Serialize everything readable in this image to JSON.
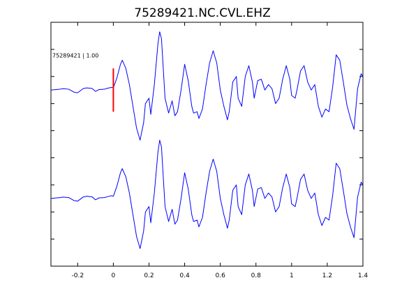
{
  "chart_data": {
    "type": "line",
    "title": "75289421.NC.CVL.EHZ",
    "xlabel": "",
    "ylabel": "",
    "xlim": [
      -0.35,
      1.4
    ],
    "ylim": [
      -7.5,
      1.5
    ],
    "x_ticks": [
      -0.2,
      0,
      0.2,
      0.4,
      0.6,
      0.8,
      1,
      1.2,
      1.4
    ],
    "x_tick_labels": [
      "-0.2",
      "0",
      "0.2",
      "0.4",
      "0.6",
      "0.8",
      "1",
      "1.2",
      "1.4"
    ],
    "y_ticks": [
      -6.5,
      -5.5,
      -4.5,
      -3.5,
      -2.5,
      -1.5,
      -0.5,
      0.5
    ],
    "grid": false,
    "series_color": "#0000ff",
    "traces": [
      {
        "label": "75289421 | 1.00",
        "offset": -1,
        "points": [
          [
            -0.35,
            0.0
          ],
          [
            -0.3,
            0.03
          ],
          [
            -0.28,
            0.05
          ],
          [
            -0.25,
            0.03
          ],
          [
            -0.22,
            -0.08
          ],
          [
            -0.2,
            -0.1
          ],
          [
            -0.17,
            0.05
          ],
          [
            -0.15,
            0.08
          ],
          [
            -0.12,
            0.06
          ],
          [
            -0.1,
            -0.05
          ],
          [
            -0.08,
            0.02
          ],
          [
            -0.05,
            0.03
          ],
          [
            -0.03,
            0.07
          ],
          [
            -0.01,
            0.1
          ],
          [
            0.0,
            0.08
          ],
          [
            0.02,
            0.45
          ],
          [
            0.04,
            0.95
          ],
          [
            0.05,
            1.1
          ],
          [
            0.07,
            0.8
          ],
          [
            0.09,
            0.2
          ],
          [
            0.11,
            -0.6
          ],
          [
            0.13,
            -1.4
          ],
          [
            0.15,
            -1.85
          ],
          [
            0.17,
            -1.2
          ],
          [
            0.18,
            -0.5
          ],
          [
            0.2,
            -0.3
          ],
          [
            0.21,
            -0.9
          ],
          [
            0.23,
            0.2
          ],
          [
            0.25,
            1.7
          ],
          [
            0.26,
            2.15
          ],
          [
            0.27,
            1.9
          ],
          [
            0.29,
            -0.3
          ],
          [
            0.31,
            -0.85
          ],
          [
            0.33,
            -0.4
          ],
          [
            0.345,
            -0.95
          ],
          [
            0.36,
            -0.8
          ],
          [
            0.38,
            0.0
          ],
          [
            0.4,
            0.95
          ],
          [
            0.42,
            0.35
          ],
          [
            0.44,
            -0.6
          ],
          [
            0.45,
            -0.85
          ],
          [
            0.47,
            -0.8
          ],
          [
            0.48,
            -1.05
          ],
          [
            0.5,
            -0.7
          ],
          [
            0.52,
            0.2
          ],
          [
            0.54,
            1.0
          ],
          [
            0.56,
            1.45
          ],
          [
            0.58,
            1.0
          ],
          [
            0.6,
            0.0
          ],
          [
            0.62,
            -0.6
          ],
          [
            0.64,
            -1.1
          ],
          [
            0.65,
            -0.8
          ],
          [
            0.67,
            0.3
          ],
          [
            0.69,
            0.5
          ],
          [
            0.7,
            -0.3
          ],
          [
            0.72,
            -0.6
          ],
          [
            0.74,
            0.5
          ],
          [
            0.76,
            0.9
          ],
          [
            0.78,
            0.3
          ],
          [
            0.79,
            -0.3
          ],
          [
            0.81,
            0.35
          ],
          [
            0.83,
            0.4
          ],
          [
            0.85,
            0.0
          ],
          [
            0.87,
            0.2
          ],
          [
            0.89,
            0.05
          ],
          [
            0.91,
            -0.5
          ],
          [
            0.93,
            -0.3
          ],
          [
            0.95,
            0.4
          ],
          [
            0.97,
            0.9
          ],
          [
            0.99,
            0.4
          ],
          [
            1.0,
            -0.2
          ],
          [
            1.02,
            -0.3
          ],
          [
            1.03,
            0.0
          ],
          [
            1.05,
            0.7
          ],
          [
            1.07,
            0.9
          ],
          [
            1.09,
            0.3
          ],
          [
            1.11,
            0.0
          ],
          [
            1.13,
            0.2
          ],
          [
            1.15,
            -0.6
          ],
          [
            1.17,
            -1.0
          ],
          [
            1.19,
            -0.7
          ],
          [
            1.21,
            -0.8
          ],
          [
            1.23,
            0.1
          ],
          [
            1.25,
            1.3
          ],
          [
            1.27,
            1.1
          ],
          [
            1.29,
            0.3
          ],
          [
            1.31,
            -0.55
          ],
          [
            1.33,
            -1.05
          ],
          [
            1.35,
            -1.45
          ],
          [
            1.37,
            0.05
          ],
          [
            1.39,
            0.6
          ],
          [
            1.4,
            0.5
          ]
        ]
      },
      {
        "label": "",
        "offset": -5,
        "points": [
          [
            -0.35,
            0.0
          ],
          [
            -0.3,
            0.03
          ],
          [
            -0.28,
            0.05
          ],
          [
            -0.25,
            0.03
          ],
          [
            -0.22,
            -0.08
          ],
          [
            -0.2,
            -0.1
          ],
          [
            -0.17,
            0.05
          ],
          [
            -0.15,
            0.08
          ],
          [
            -0.12,
            0.06
          ],
          [
            -0.1,
            -0.05
          ],
          [
            -0.08,
            0.02
          ],
          [
            -0.05,
            0.03
          ],
          [
            -0.03,
            0.07
          ],
          [
            -0.01,
            0.1
          ],
          [
            0.0,
            0.08
          ],
          [
            0.02,
            0.45
          ],
          [
            0.04,
            0.95
          ],
          [
            0.05,
            1.1
          ],
          [
            0.07,
            0.8
          ],
          [
            0.09,
            0.2
          ],
          [
            0.11,
            -0.6
          ],
          [
            0.13,
            -1.4
          ],
          [
            0.15,
            -1.85
          ],
          [
            0.17,
            -1.2
          ],
          [
            0.18,
            -0.5
          ],
          [
            0.2,
            -0.3
          ],
          [
            0.21,
            -0.9
          ],
          [
            0.23,
            0.2
          ],
          [
            0.25,
            1.7
          ],
          [
            0.26,
            2.15
          ],
          [
            0.27,
            1.9
          ],
          [
            0.29,
            -0.3
          ],
          [
            0.31,
            -0.85
          ],
          [
            0.33,
            -0.4
          ],
          [
            0.345,
            -0.95
          ],
          [
            0.36,
            -0.8
          ],
          [
            0.38,
            0.0
          ],
          [
            0.4,
            0.95
          ],
          [
            0.42,
            0.35
          ],
          [
            0.44,
            -0.6
          ],
          [
            0.45,
            -0.85
          ],
          [
            0.47,
            -0.8
          ],
          [
            0.48,
            -1.05
          ],
          [
            0.5,
            -0.7
          ],
          [
            0.52,
            0.2
          ],
          [
            0.54,
            1.0
          ],
          [
            0.56,
            1.45
          ],
          [
            0.58,
            1.0
          ],
          [
            0.6,
            0.0
          ],
          [
            0.62,
            -0.6
          ],
          [
            0.64,
            -1.1
          ],
          [
            0.65,
            -0.8
          ],
          [
            0.67,
            0.3
          ],
          [
            0.69,
            0.5
          ],
          [
            0.7,
            -0.3
          ],
          [
            0.72,
            -0.6
          ],
          [
            0.74,
            0.5
          ],
          [
            0.76,
            0.9
          ],
          [
            0.78,
            0.3
          ],
          [
            0.79,
            -0.3
          ],
          [
            0.81,
            0.35
          ],
          [
            0.83,
            0.4
          ],
          [
            0.85,
            0.0
          ],
          [
            0.87,
            0.2
          ],
          [
            0.89,
            0.05
          ],
          [
            0.91,
            -0.5
          ],
          [
            0.93,
            -0.3
          ],
          [
            0.95,
            0.4
          ],
          [
            0.97,
            0.9
          ],
          [
            0.99,
            0.4
          ],
          [
            1.0,
            -0.2
          ],
          [
            1.02,
            -0.3
          ],
          [
            1.03,
            0.0
          ],
          [
            1.05,
            0.7
          ],
          [
            1.07,
            0.9
          ],
          [
            1.09,
            0.3
          ],
          [
            1.11,
            0.0
          ],
          [
            1.13,
            0.2
          ],
          [
            1.15,
            -0.6
          ],
          [
            1.17,
            -1.0
          ],
          [
            1.19,
            -0.7
          ],
          [
            1.21,
            -0.8
          ],
          [
            1.23,
            0.1
          ],
          [
            1.25,
            1.3
          ],
          [
            1.27,
            1.1
          ],
          [
            1.29,
            0.3
          ],
          [
            1.31,
            -0.55
          ],
          [
            1.33,
            -1.05
          ],
          [
            1.35,
            -1.45
          ],
          [
            1.37,
            0.05
          ],
          [
            1.39,
            0.6
          ],
          [
            1.4,
            0.5
          ]
        ]
      }
    ],
    "pick_marker": {
      "x": 0,
      "y_range": [
        -1.8,
        -0.2
      ],
      "color": "#ff0000"
    }
  }
}
